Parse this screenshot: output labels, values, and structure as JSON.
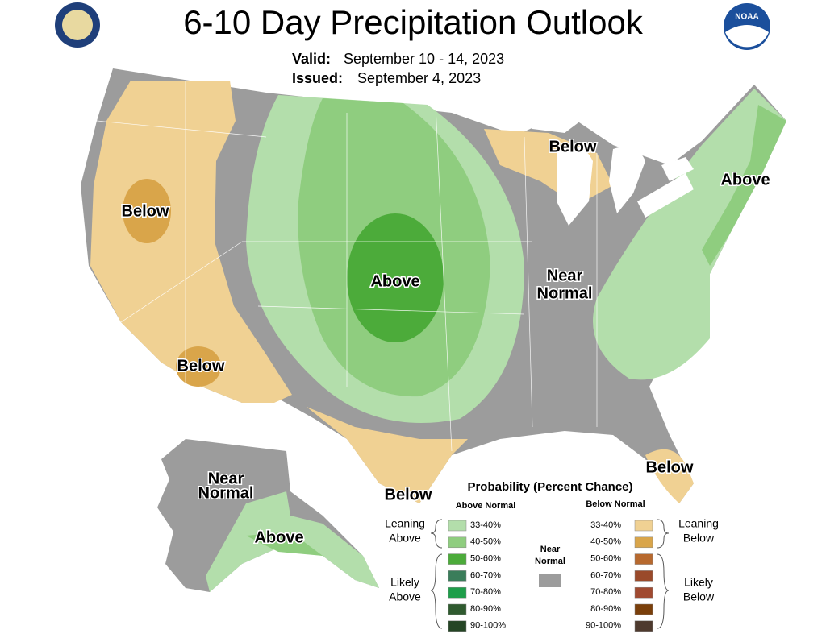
{
  "header": {
    "title": "6-10 Day Precipitation Outlook",
    "valid_label": "Valid:",
    "valid": "September 10 - 14, 2023",
    "issued_label": "Issued:",
    "issued": "September 4, 2023"
  },
  "logos": {
    "noaa": "NOAA"
  },
  "map_labels": [
    {
      "lines": [
        "Below"
      ]
    },
    {
      "lines": [
        "Below"
      ]
    },
    {
      "lines": [
        "Below"
      ]
    },
    {
      "lines": [
        "Below"
      ]
    },
    {
      "lines": [
        "Below"
      ]
    },
    {
      "lines": [
        "Above"
      ]
    },
    {
      "lines": [
        "Above"
      ]
    },
    {
      "lines": [
        "Above"
      ]
    },
    {
      "lines": [
        "Near",
        "Normal"
      ]
    },
    {
      "lines": [
        "Near",
        "Normal"
      ]
    }
  ],
  "legend": {
    "title": "Probability (Percent Chance)",
    "above_heading": "Above Normal",
    "below_heading": "Below Normal",
    "near": {
      "lines": [
        "Near",
        "Normal"
      ],
      "color": "#9c9c9c"
    },
    "above": [
      {
        "label": "33-40%",
        "color": "#b3deab"
      },
      {
        "label": "40-50%",
        "color": "#8fcd7f"
      },
      {
        "label": "50-60%",
        "color": "#4cab3a"
      },
      {
        "label": "60-70%",
        "color": "#3a7d5a"
      },
      {
        "label": "70-80%",
        "color": "#1e9e4a"
      },
      {
        "label": "80-90%",
        "color": "#2f5a2f"
      },
      {
        "label": "90-100%",
        "color": "#254525"
      }
    ],
    "below": [
      {
        "label": "33-40%",
        "color": "#f0d193"
      },
      {
        "label": "40-50%",
        "color": "#d9a54a"
      },
      {
        "label": "50-60%",
        "color": "#b7692e"
      },
      {
        "label": "60-70%",
        "color": "#9a4a2a"
      },
      {
        "label": "70-80%",
        "color": "#a04a30"
      },
      {
        "label": "80-90%",
        "color": "#7a3f0a"
      },
      {
        "label": "90-100%",
        "color": "#4e3a2e"
      }
    ],
    "groups": [
      {
        "lines": [
          "Leaning",
          "Above"
        ]
      },
      {
        "lines": [
          "Likely",
          "Above"
        ]
      },
      {
        "lines": [
          "Leaning",
          "Below"
        ]
      },
      {
        "lines": [
          "Likely",
          "Below"
        ]
      }
    ]
  }
}
